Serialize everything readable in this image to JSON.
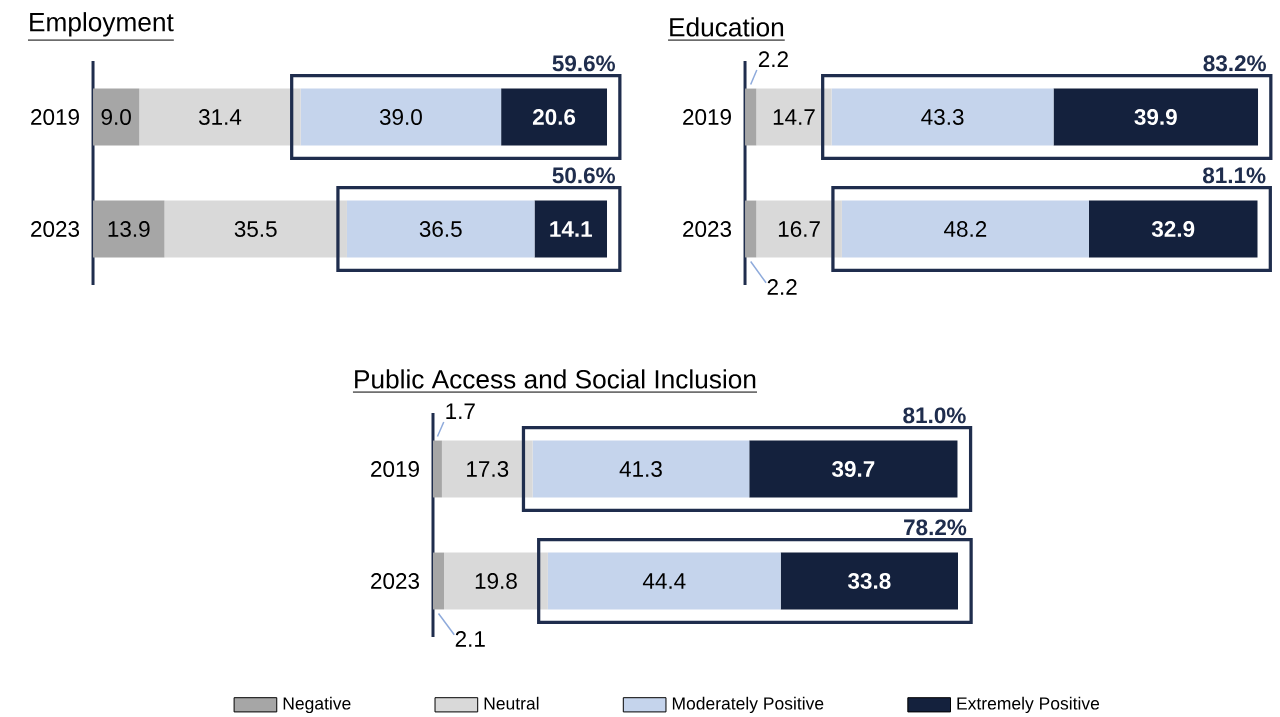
{
  "chart_data": [
    {
      "type": "bar",
      "orientation": "horizontal",
      "stacked": true,
      "title": "Employment",
      "categories": [
        "2019",
        "2023"
      ],
      "series": [
        {
          "color": "#a6a6a6",
          "values": [
            9.0,
            13.9
          ],
          "value_labels": [
            "9.0",
            "13.9"
          ]
        },
        {
          "color": "#d9d9d9",
          "values": [
            31.4,
            35.5
          ],
          "value_labels": [
            "31.4",
            "35.5"
          ]
        },
        {
          "color": "#c5d4ec",
          "values": [
            39.0,
            36.5
          ],
          "value_labels": [
            "39.0",
            "36.5"
          ]
        },
        {
          "color": "#14213d",
          "values": [
            20.6,
            14.1
          ],
          "value_labels": [
            "20.6",
            "14.1"
          ]
        }
      ],
      "annotations": [
        "59.6%",
        "50.6%"
      ]
    },
    {
      "type": "bar",
      "orientation": "horizontal",
      "stacked": true,
      "title": "Education",
      "categories": [
        "2019",
        "2023"
      ],
      "series": [
        {
          "color": "#a6a6a6",
          "values": [
            2.2,
            2.2
          ],
          "value_labels": [
            "2.2",
            "2.2"
          ]
        },
        {
          "color": "#d9d9d9",
          "values": [
            14.7,
            16.7
          ],
          "value_labels": [
            "14.7",
            "16.7"
          ]
        },
        {
          "color": "#c5d4ec",
          "values": [
            43.3,
            48.2
          ],
          "value_labels": [
            "43.3",
            "48.2"
          ]
        },
        {
          "color": "#14213d",
          "values": [
            39.9,
            32.9
          ],
          "value_labels": [
            "39.9",
            "32.9"
          ]
        }
      ],
      "annotations": [
        "83.2%",
        "81.1%"
      ]
    },
    {
      "type": "bar",
      "orientation": "horizontal",
      "stacked": true,
      "title": "Public Access and Social Inclusion",
      "categories": [
        "2019",
        "2023"
      ],
      "legend": "bottom",
      "series": [
        {
          "name": "Negative",
          "color": "#a6a6a6",
          "values": [
            1.7,
            2.1
          ],
          "value_labels": [
            "1.7",
            "2.1"
          ]
        },
        {
          "name": "Neutral",
          "color": "#d9d9d9",
          "values": [
            17.3,
            19.8
          ],
          "value_labels": [
            "17.3",
            "19.8"
          ]
        },
        {
          "name": "Moderately Positive",
          "color": "#c5d4ec",
          "values": [
            41.3,
            44.4
          ],
          "value_labels": [
            "41.3",
            "44.4"
          ]
        },
        {
          "name": "Extremely Positive",
          "color": "#14213d",
          "values": [
            39.7,
            33.8
          ],
          "value_labels": [
            "39.7",
            "33.8"
          ]
        }
      ],
      "annotations": [
        "81.0%",
        "78.2%"
      ]
    }
  ]
}
